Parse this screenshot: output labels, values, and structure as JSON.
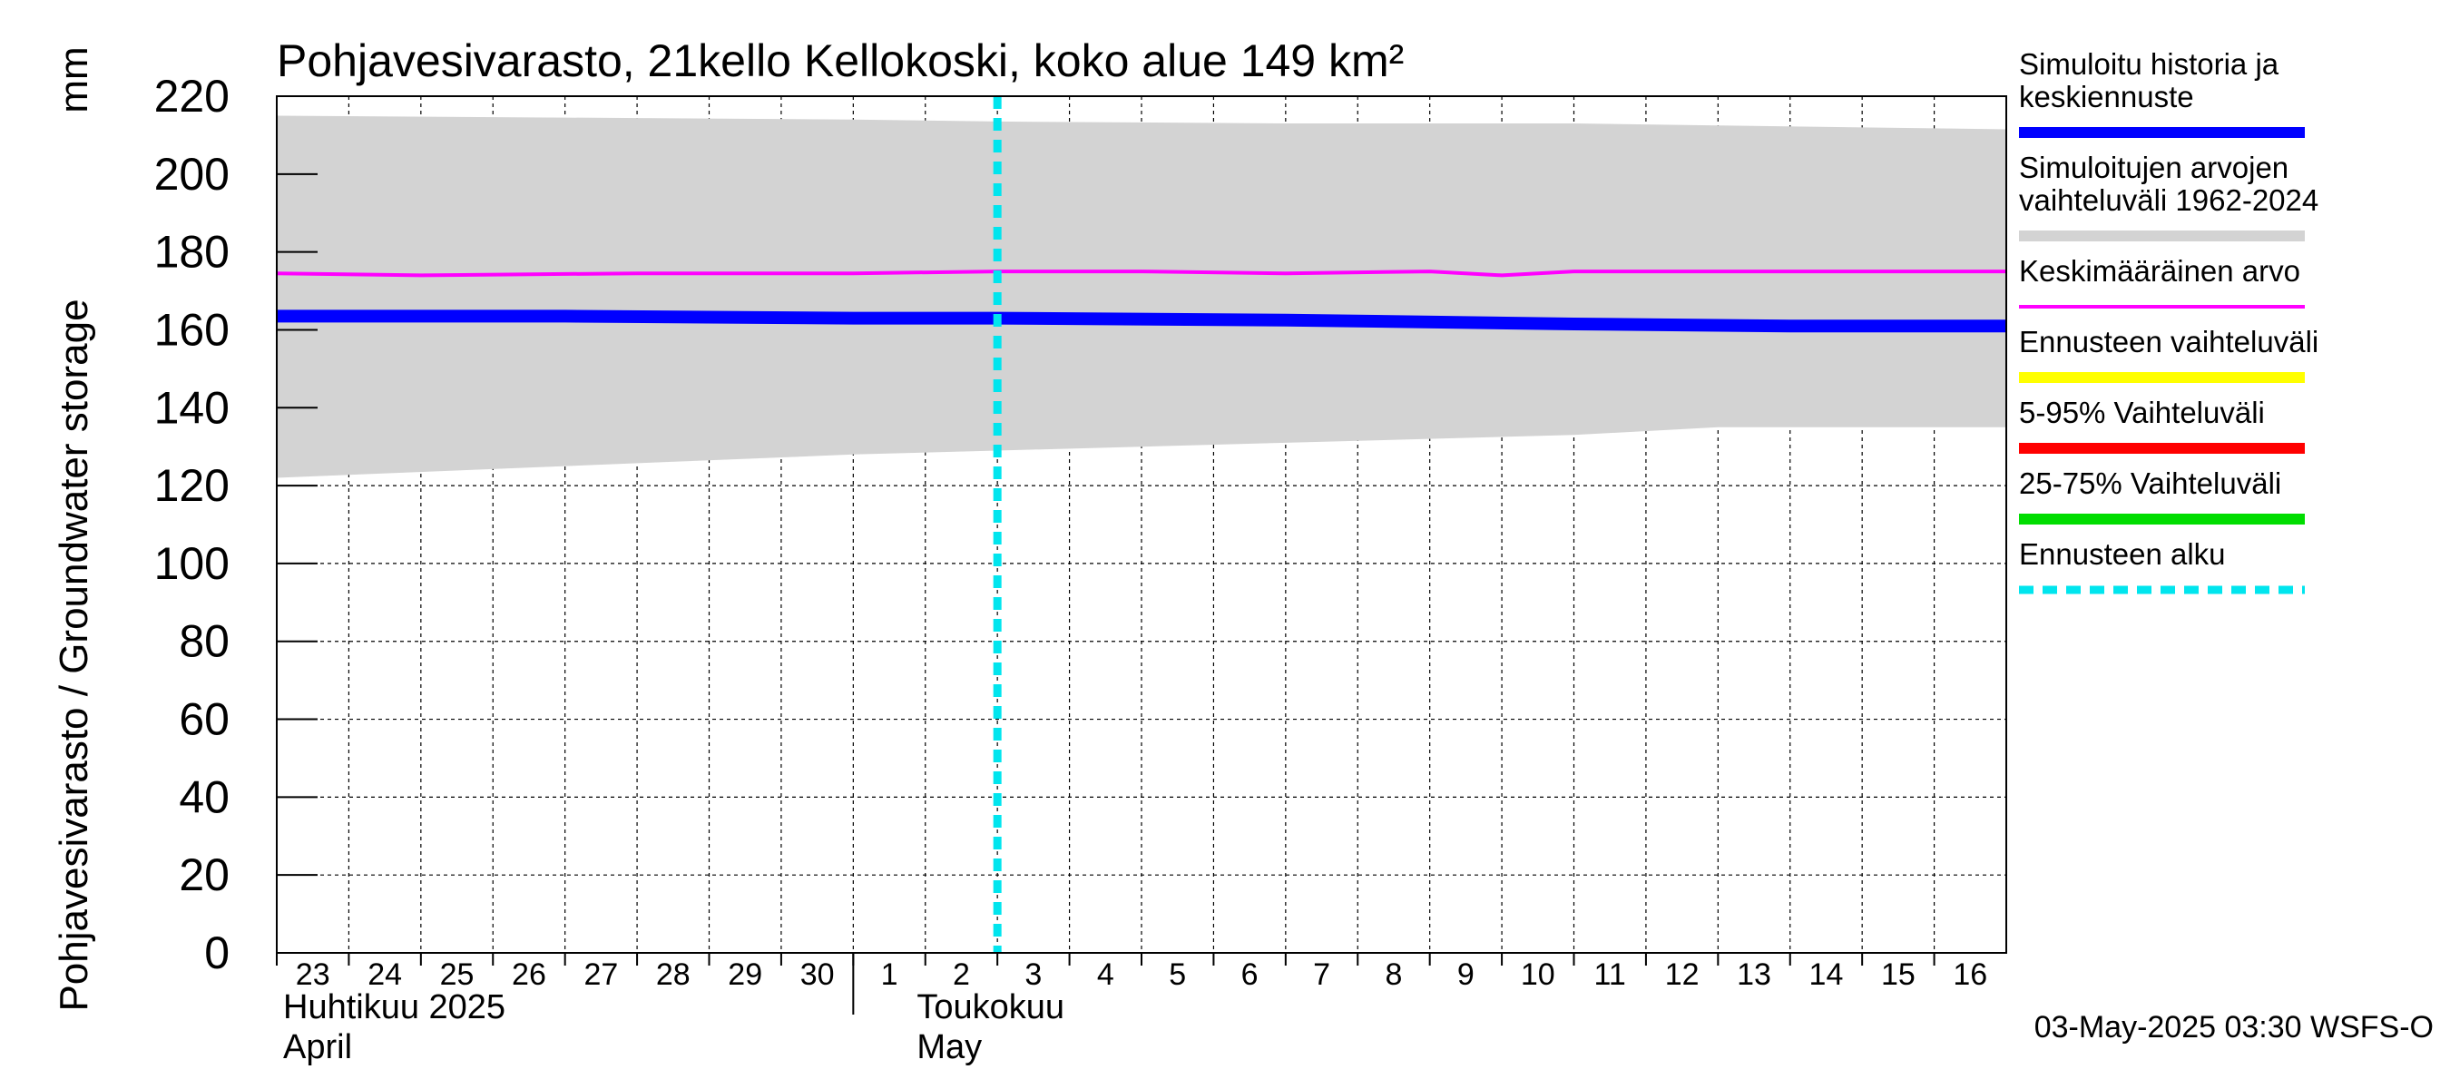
{
  "chart_data": {
    "type": "line",
    "title": "Pohjavesivarasto, 21kello Kellokoski, koko alue 149 km²",
    "ylabel": "Pohjavesivarasto / Groundwater storage",
    "yunit": "mm",
    "ylim": [
      0,
      220
    ],
    "yticks": [
      0,
      20,
      40,
      60,
      80,
      100,
      120,
      140,
      160,
      180,
      200,
      220
    ],
    "x_range": [
      "2025-04-23",
      "2025-05-17"
    ],
    "x_day_labels": [
      "23",
      "24",
      "25",
      "26",
      "27",
      "28",
      "29",
      "30",
      "1",
      "2",
      "3",
      "4",
      "5",
      "6",
      "7",
      "8",
      "9",
      "10",
      "11",
      "12",
      "13",
      "14",
      "15",
      "16"
    ],
    "month_labels": [
      {
        "line1": "Huhtikuu  2025",
        "line2": "April"
      },
      {
        "line1": "Toukokuu",
        "line2": "May"
      }
    ],
    "grid": true,
    "forecast_start": "2025-05-03",
    "series": [
      {
        "name": "Simuloitujen arvojen vaihteluväli 1962-2024",
        "kind": "band",
        "color": "#d3d3d3",
        "x": [
          "2025-04-23",
          "2025-04-27",
          "2025-05-01",
          "2025-05-03",
          "2025-05-07",
          "2025-05-11",
          "2025-05-13",
          "2025-05-17"
        ],
        "upper": [
          215,
          214.5,
          214,
          213.5,
          213,
          213,
          212.5,
          211.5
        ],
        "lower": [
          122,
          125,
          128,
          129,
          131,
          133,
          135,
          135
        ]
      },
      {
        "name": "Keskimääräinen arvo",
        "kind": "line",
        "color": "#ff00ff",
        "x": [
          "2025-04-23",
          "2025-04-25",
          "2025-04-28",
          "2025-05-01",
          "2025-05-03",
          "2025-05-05",
          "2025-05-07",
          "2025-05-09",
          "2025-05-10",
          "2025-05-11",
          "2025-05-13",
          "2025-05-17"
        ],
        "y": [
          174.5,
          174,
          174.5,
          174.5,
          175,
          175,
          174.5,
          175,
          174,
          175,
          175,
          175
        ]
      },
      {
        "name": "Ennusteen vaihteluväli",
        "kind": "band",
        "color": "#ffff00",
        "x": [
          "2025-05-03",
          "2025-05-07",
          "2025-05-11",
          "2025-05-17"
        ],
        "upper": [
          163.5,
          163,
          162.5,
          162.5
        ],
        "lower": [
          163,
          162,
          161,
          160
        ]
      },
      {
        "name": "5-95% Vaihteluväli",
        "kind": "band",
        "color": "#ff0000",
        "x": [
          "2025-05-03",
          "2025-05-07",
          "2025-05-11",
          "2025-05-17"
        ],
        "upper": [
          163.2,
          162.7,
          162,
          161.8
        ],
        "lower": [
          163,
          162.1,
          161.2,
          160.4
        ]
      },
      {
        "name": "25-75% Vaihteluväli",
        "kind": "band",
        "color": "#00dd00",
        "x": [
          "2025-05-03",
          "2025-05-07",
          "2025-05-11",
          "2025-05-17"
        ],
        "upper": [
          163.1,
          162.5,
          161.8,
          161.4
        ],
        "lower": [
          163,
          162.2,
          161.4,
          160.8
        ]
      },
      {
        "name": "Simuloitu historia ja keskiennuste",
        "kind": "line",
        "color": "#0000ff",
        "x": [
          "2025-04-23",
          "2025-04-27",
          "2025-05-01",
          "2025-05-03",
          "2025-05-07",
          "2025-05-11",
          "2025-05-14",
          "2025-05-17"
        ],
        "y": [
          163.5,
          163.5,
          163,
          163,
          162.5,
          161.5,
          161,
          161
        ]
      }
    ],
    "legend": {
      "placement": "right",
      "items": [
        {
          "lines": [
            "Simuloitu historia ja",
            "keskiennuste"
          ],
          "color": "#0000ff",
          "style": "solid"
        },
        {
          "lines": [
            "Simuloitujen arvojen",
            "vaihteluväli 1962-2024"
          ],
          "color": "#d3d3d3",
          "style": "solid"
        },
        {
          "lines": [
            "Keskimääräinen arvo"
          ],
          "color": "#ff00ff",
          "style": "thin"
        },
        {
          "lines": [
            "Ennusteen vaihteluväli"
          ],
          "color": "#ffff00",
          "style": "solid"
        },
        {
          "lines": [
            "5-95% Vaihteluväli"
          ],
          "color": "#ff0000",
          "style": "solid"
        },
        {
          "lines": [
            "25-75% Vaihteluväli"
          ],
          "color": "#00dd00",
          "style": "solid"
        },
        {
          "lines": [
            "Ennusteen alku"
          ],
          "color": "#00e5ee",
          "style": "dashed"
        }
      ]
    },
    "footer": "03-May-2025 03:30 WSFS-O"
  }
}
